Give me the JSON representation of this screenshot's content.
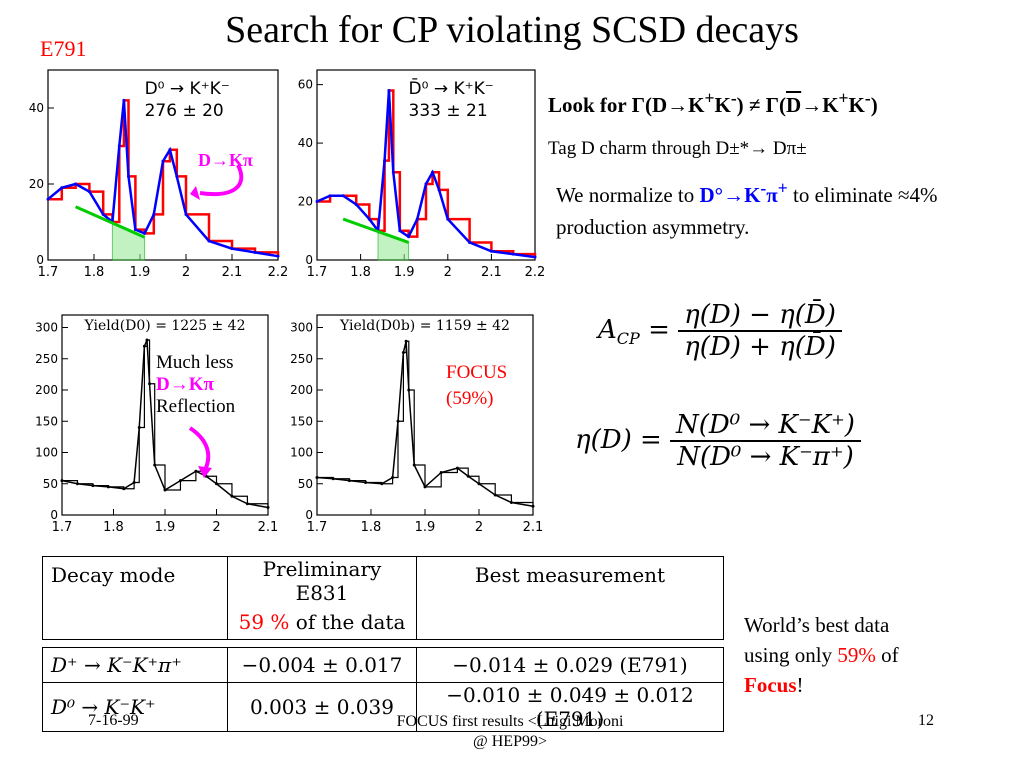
{
  "title": "Search for CP violating SCSD decays",
  "e791_label": "E791",
  "look_for": {
    "prefix": "Look for ",
    "gamma1": "Γ(D→K",
    "sup_plus1": "+",
    "mid1": "K",
    "sup_minus1": "-",
    "close1": ") ≠ Γ(",
    "dbar": "D",
    "arrow2": "→K",
    "sup_plus2": "+",
    "mid2": "K",
    "sup_minus2": "-",
    "close2": ")"
  },
  "tag_line": "Tag D charm through D±*→ Dπ±",
  "normalize": {
    "before": "We normalize to ",
    "decay": "D°→K",
    "sup1": "-",
    "pi": "π",
    "sup2": "+",
    "after": " to eliminate ≈4% production asymmetry."
  },
  "much_less": {
    "line1": "Much less",
    "line2": "D→Kπ",
    "line3": "Reflection"
  },
  "dkpi_label": "D→Kπ",
  "focus_label": {
    "line1": "FOCUS",
    "line2": "(59%)"
  },
  "formula_acp": {
    "lhs": "A",
    "lhs_sub": "CP",
    "num": "η(D) − η(D̄)",
    "den": "η(D) + η(D̄)"
  },
  "formula_eta": {
    "lhs": "η(D) =",
    "num": "N(D⁰ → K⁻K⁺)",
    "den": "N(D⁰ → K⁻π⁺)"
  },
  "table": {
    "headers": [
      "Decay mode",
      "Preliminary E831",
      "Best measurement"
    ],
    "subheader": {
      "value": "59 %",
      "rest": " of the data"
    },
    "rows": [
      {
        "mode": "D⁺ → K⁻K⁺π⁺",
        "prelim": "−0.004 ± 0.017",
        "best": "−0.014 ± 0.029 (E791)"
      },
      {
        "mode": "D⁰ → K⁻K⁺",
        "prelim": "0.003 ± 0.039",
        "best": "−0.010 ± 0.049 ± 0.012 (E791)"
      }
    ]
  },
  "world_best": {
    "line1": "World’s best data",
    "line2a": "using only ",
    "pct": "59%",
    "line2b": " of",
    "focus": "Focus",
    "excl": "!"
  },
  "footer": {
    "date": "7-16-99",
    "center1": "FOCUS first results <Luigi Moroni",
    "center2": "@ HEP99>",
    "page": "12"
  },
  "chart_data": [
    {
      "type": "line",
      "title": "",
      "annotation": [
        "D⁰ → K⁺K⁻",
        "276 ± 20"
      ],
      "xlim": [
        1.7,
        2.2
      ],
      "ylim": [
        0,
        50
      ],
      "x_ticks": [
        "1.7",
        "1.8",
        "1.9",
        "2",
        "2.1",
        "2.2"
      ],
      "y_ticks": [
        "0",
        "20",
        "40"
      ],
      "series": [
        {
          "x": [
            1.7,
            1.73,
            1.76,
            1.79,
            1.82,
            1.84,
            1.855,
            1.865,
            1.875,
            1.89,
            1.91,
            1.93,
            1.95,
            1.965,
            1.98,
            2.0,
            2.05,
            2.1,
            2.15,
            2.2
          ],
          "y": [
            16,
            19,
            20,
            18,
            12,
            10,
            30,
            42,
            22,
            8,
            7,
            12,
            26,
            29,
            22,
            12,
            5,
            3,
            2,
            1
          ]
        }
      ]
    },
    {
      "type": "line",
      "title": "",
      "annotation": [
        "D̄⁰ → K⁺K⁻",
        "333 ± 21"
      ],
      "xlim": [
        1.7,
        2.2
      ],
      "ylim": [
        0,
        65
      ],
      "x_ticks": [
        "1.7",
        "1.8",
        "1.9",
        "2",
        "2.1",
        "2.2"
      ],
      "y_ticks": [
        "0",
        "20",
        "40",
        "60"
      ],
      "series": [
        {
          "x": [
            1.7,
            1.73,
            1.76,
            1.79,
            1.82,
            1.84,
            1.855,
            1.865,
            1.875,
            1.89,
            1.91,
            1.93,
            1.95,
            1.965,
            1.98,
            2.0,
            2.05,
            2.1,
            2.15,
            2.2
          ],
          "y": [
            20,
            22,
            22,
            19,
            14,
            10,
            34,
            58,
            30,
            10,
            8,
            14,
            26,
            30,
            24,
            14,
            6,
            3,
            2,
            1
          ]
        }
      ]
    },
    {
      "type": "line",
      "title": "Yield(D0) = 1225 ± 42",
      "xlim": [
        1.7,
        2.1
      ],
      "ylim": [
        0,
        320
      ],
      "x_ticks": [
        "1.7",
        "1.8",
        "1.9",
        "2",
        "2.1"
      ],
      "y_ticks": [
        "0",
        "50",
        "100",
        "150",
        "200",
        "250",
        "300"
      ],
      "series": [
        {
          "x": [
            1.7,
            1.73,
            1.76,
            1.79,
            1.82,
            1.84,
            1.85,
            1.86,
            1.865,
            1.87,
            1.88,
            1.9,
            1.93,
            1.96,
            1.98,
            2.0,
            2.03,
            2.06,
            2.1
          ],
          "y": [
            55,
            50,
            47,
            45,
            42,
            52,
            140,
            270,
            280,
            210,
            80,
            40,
            55,
            70,
            62,
            50,
            30,
            18,
            12
          ]
        }
      ]
    },
    {
      "type": "line",
      "title": "Yield(D0b) = 1159 ± 42",
      "xlim": [
        1.7,
        2.1
      ],
      "ylim": [
        0,
        320
      ],
      "x_ticks": [
        "1.7",
        "1.8",
        "1.9",
        "2",
        "2.1"
      ],
      "y_ticks": [
        "0",
        "50",
        "100",
        "150",
        "200",
        "250",
        "300"
      ],
      "series": [
        {
          "x": [
            1.7,
            1.73,
            1.76,
            1.79,
            1.82,
            1.84,
            1.85,
            1.86,
            1.865,
            1.87,
            1.88,
            1.9,
            1.93,
            1.96,
            1.98,
            2.0,
            2.03,
            2.06,
            2.1
          ],
          "y": [
            60,
            58,
            55,
            52,
            50,
            60,
            150,
            260,
            278,
            200,
            80,
            45,
            68,
            75,
            62,
            50,
            32,
            20,
            14
          ]
        }
      ]
    }
  ]
}
